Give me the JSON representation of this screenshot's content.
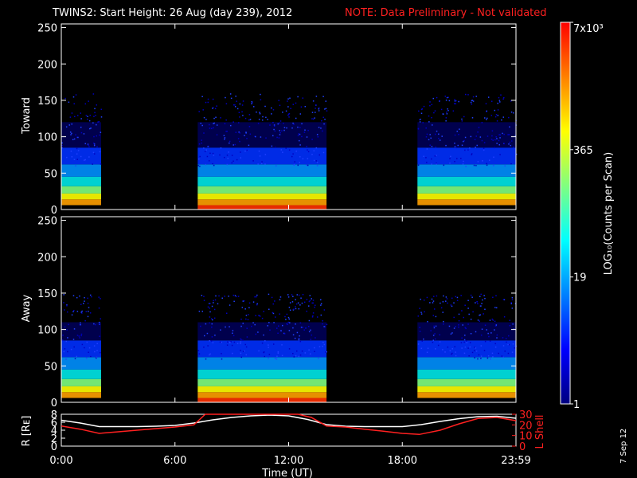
{
  "title": {
    "main": "TWINS2: Start Height: 26 Aug (day 239), 2012",
    "note": "NOTE: Data Preliminary - Not validated"
  },
  "date_stamp": "7 Sep 12",
  "colorbar": {
    "label": "LOG₁₀(Counts per Scan)",
    "ticks": [
      "7x10³",
      "365",
      "19",
      "1"
    ],
    "values": [
      7000,
      365,
      19,
      1
    ],
    "scale": "log",
    "colors": [
      "#000080",
      "#0000ff",
      "#0080ff",
      "#00ffff",
      "#80ff80",
      "#ffff00",
      "#ff8000",
      "#ff0000"
    ]
  },
  "chart_data": [
    {
      "type": "heatmap",
      "ylabel": "Toward",
      "ylim": [
        0,
        255
      ],
      "yticks": [
        "0",
        "50",
        "100",
        "150",
        "200",
        "250"
      ],
      "xlim_hours": [
        0,
        24
      ],
      "active_intervals_hours": [
        [
          0.0,
          2.1
        ],
        [
          7.2,
          14.0
        ],
        [
          18.8,
          24.0
        ]
      ],
      "peak_height": 120
    },
    {
      "type": "heatmap",
      "ylabel": "Away",
      "ylim": [
        0,
        255
      ],
      "yticks": [
        "0",
        "50",
        "100",
        "150",
        "200",
        "250"
      ],
      "xlim_hours": [
        0,
        24
      ],
      "active_intervals_hours": [
        [
          0.0,
          2.1
        ],
        [
          7.2,
          14.0
        ],
        [
          18.8,
          24.0
        ]
      ],
      "peak_height": 110
    },
    {
      "type": "line",
      "ylabel_left": "R [Rᴇ]",
      "ylabel_right": "L Shell",
      "yticks_left": [
        "8",
        "6",
        "4",
        "2",
        "0"
      ],
      "yticks_right": [
        "30",
        "20",
        "10",
        "0"
      ],
      "ylim_left": [
        0,
        8
      ],
      "ylim_right": [
        0,
        30
      ],
      "xlabel": "Time (UT)",
      "xticks": [
        "0:00",
        "6:00",
        "12:00",
        "18:00",
        "23:59"
      ],
      "series": [
        {
          "name": "R",
          "color": "#ffffff",
          "x": [
            0,
            1,
            2,
            3,
            4,
            5,
            6,
            7,
            8,
            9,
            10,
            11,
            12,
            13,
            14,
            15,
            16,
            17,
            18,
            19,
            20,
            21,
            22,
            23,
            24
          ],
          "y": [
            6.5,
            5.8,
            4.9,
            4.9,
            4.9,
            5.0,
            5.2,
            5.8,
            6.6,
            7.2,
            7.6,
            7.8,
            7.6,
            6.7,
            5.4,
            5.0,
            4.9,
            4.9,
            4.9,
            5.4,
            6.2,
            6.9,
            7.4,
            7.5,
            7.0
          ]
        },
        {
          "name": "L Shell",
          "color": "#ff2020",
          "x": [
            0,
            1,
            2,
            3,
            4,
            5,
            6,
            7,
            7.6,
            12.5,
            13.2,
            14,
            15,
            16,
            17,
            18,
            18.9,
            20,
            21,
            22,
            23,
            24
          ],
          "y": [
            19,
            16,
            12,
            13.5,
            15,
            16.5,
            18,
            20,
            30,
            30,
            27,
            19,
            18,
            16,
            14,
            12,
            11,
            15,
            21,
            26,
            27,
            24
          ]
        }
      ]
    }
  ]
}
